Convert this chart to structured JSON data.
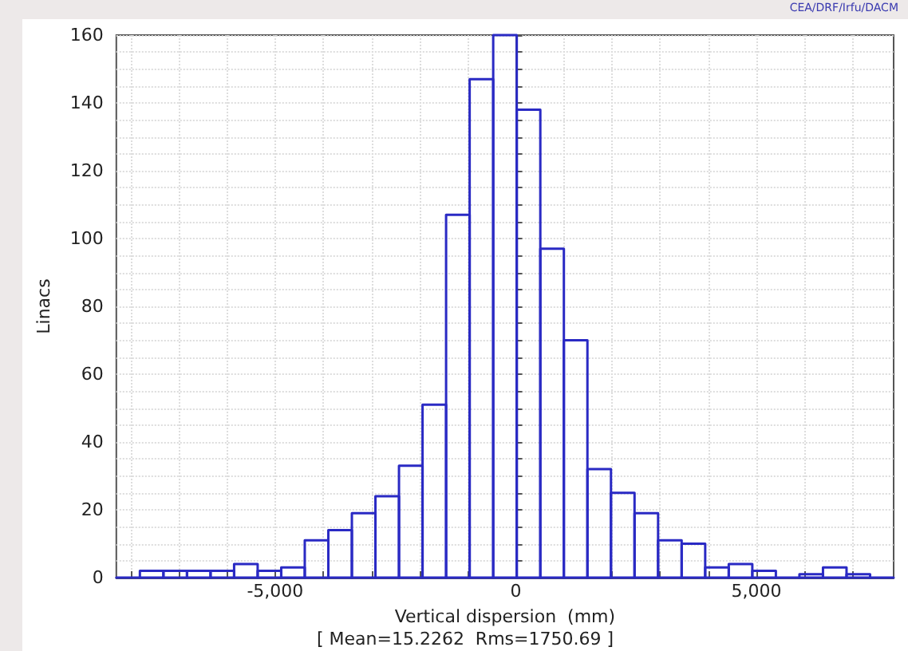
{
  "chart_data": {
    "type": "histogram",
    "xlabel": "Vertical dispersion  (mm)",
    "ylabel": "Linacs",
    "annotations": [
      "[ Mean=15.2262  Rms=1750.69 ]",
      "CEA/DRF/Irfu/DACM"
    ],
    "bins": [
      -8300,
      -7810.6,
      -7321.2,
      -6831.8,
      -6342.4,
      -5853,
      -5363.6,
      -4874.2,
      -4384.8,
      -3895.4,
      -3406,
      -2916.6,
      -2427.2,
      -1937.8,
      -1448.4,
      -959,
      -469.6,
      19.8,
      509.2,
      998.6,
      1488,
      1977.4,
      2466.8,
      2956.2,
      3445.6,
      3935,
      4424.4,
      4913.8,
      5403.2,
      5892.6,
      6382,
      6871.4,
      7360.8,
      7850
    ],
    "values": [
      0,
      2,
      2,
      2,
      2,
      4,
      2,
      3,
      11,
      14,
      19,
      24,
      33,
      51,
      107,
      147,
      160,
      138,
      97,
      70,
      32,
      25,
      19,
      11,
      10,
      3,
      4,
      2,
      0,
      1,
      3,
      1,
      0
    ],
    "color": "#2a2ac4",
    "xlim": [
      -8300,
      7850
    ],
    "xticks": [
      {
        "value": -8000,
        "label": null
      },
      {
        "value": -7000,
        "label": null
      },
      {
        "value": -6000,
        "label": null
      },
      {
        "value": -5000,
        "label": "-5,000"
      },
      {
        "value": -4000,
        "label": null
      },
      {
        "value": -3000,
        "label": null
      },
      {
        "value": -2000,
        "label": null
      },
      {
        "value": -1000,
        "label": null
      },
      0,
      {
        "value": 1000,
        "label": null
      },
      {
        "value": 2000,
        "label": null
      },
      {
        "value": 3000,
        "label": null
      },
      {
        "value": 4000,
        "label": null
      },
      {
        "value": 5000,
        "label": "5,000"
      },
      {
        "value": 6000,
        "label": null
      },
      {
        "value": 7000,
        "label": null
      }
    ],
    "ylim": [
      0,
      160
    ],
    "yticks": [
      0,
      {
        "value": 5,
        "label": null
      },
      {
        "value": 10,
        "label": null
      },
      {
        "value": 15,
        "label": null
      },
      20,
      {
        "value": 25,
        "label": null
      },
      {
        "value": 30,
        "label": null
      },
      {
        "value": 35,
        "label": null
      },
      40,
      {
        "value": 45,
        "label": null
      },
      {
        "value": 50,
        "label": null
      },
      {
        "value": 55,
        "label": null
      },
      60,
      {
        "value": 65,
        "label": null
      },
      {
        "value": 70,
        "label": null
      },
      {
        "value": 75,
        "label": null
      },
      80,
      {
        "value": 85,
        "label": null
      },
      {
        "value": 90,
        "label": null
      },
      {
        "value": 95,
        "label": null
      },
      100,
      {
        "value": 105,
        "label": null
      },
      {
        "value": 110,
        "label": null
      },
      {
        "value": 115,
        "label": null
      },
      120,
      {
        "value": 125,
        "label": null
      },
      {
        "value": 130,
        "label": null
      },
      {
        "value": 135,
        "label": null
      },
      140,
      {
        "value": 145,
        "label": null
      },
      {
        "value": 150,
        "label": null
      },
      {
        "value": 155,
        "label": null
      },
      160
    ],
    "grid": true
  }
}
